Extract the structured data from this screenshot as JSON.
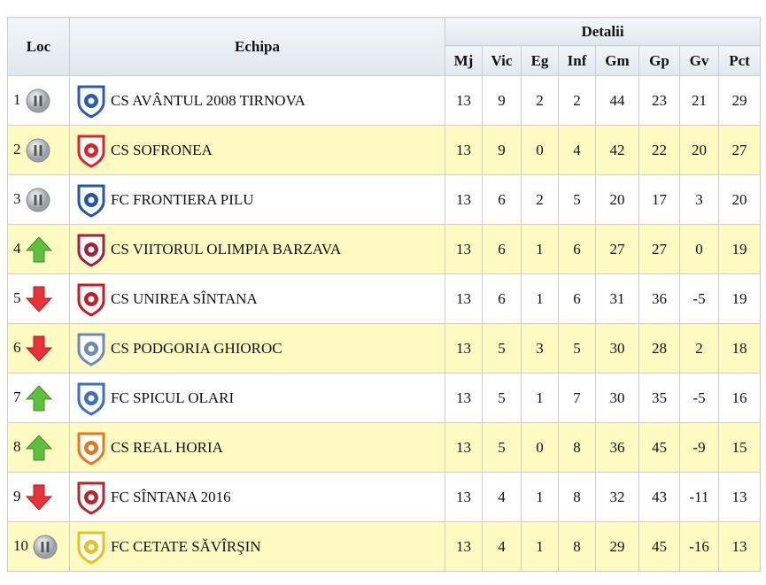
{
  "header": {
    "loc": "Loc",
    "team": "Echipa",
    "details": "Detalii",
    "columns": [
      "Mj",
      "Vic",
      "Eg",
      "Inf",
      "Gm",
      "Gp",
      "Gv",
      "Pct"
    ]
  },
  "table": {
    "rows": [
      {
        "position": 1,
        "trend": "same",
        "team": "CS AVÂNTUL 2008 TIRNOVA",
        "stats": [
          13,
          9,
          2,
          2,
          44,
          23,
          21,
          29
        ]
      },
      {
        "position": 2,
        "trend": "same",
        "team": "CS SOFRONEA",
        "stats": [
          13,
          9,
          0,
          4,
          42,
          22,
          20,
          27
        ]
      },
      {
        "position": 3,
        "trend": "same",
        "team": "FC FRONTIERA PILU",
        "stats": [
          13,
          6,
          2,
          5,
          20,
          17,
          3,
          20
        ]
      },
      {
        "position": 4,
        "trend": "up",
        "team": "CS VIITORUL OLIMPIA BARZAVA",
        "stats": [
          13,
          6,
          1,
          6,
          27,
          27,
          0,
          19
        ]
      },
      {
        "position": 5,
        "trend": "down",
        "team": "CS UNIREA SÎNTANA",
        "stats": [
          13,
          6,
          1,
          6,
          31,
          36,
          -5,
          19
        ]
      },
      {
        "position": 6,
        "trend": "down",
        "team": "CS PODGORIA GHIOROC",
        "stats": [
          13,
          5,
          3,
          5,
          30,
          28,
          2,
          18
        ]
      },
      {
        "position": 7,
        "trend": "up",
        "team": "FC SPICUL OLARI",
        "stats": [
          13,
          5,
          1,
          7,
          30,
          35,
          -5,
          16
        ]
      },
      {
        "position": 8,
        "trend": "up",
        "team": "CS REAL HORIA",
        "stats": [
          13,
          5,
          0,
          8,
          36,
          45,
          -9,
          15
        ]
      },
      {
        "position": 9,
        "trend": "down",
        "team": "FC SÎNTANA 2016",
        "stats": [
          13,
          4,
          1,
          8,
          32,
          43,
          -11,
          13
        ]
      },
      {
        "position": 10,
        "trend": "same",
        "team": "FC CETATE SĂVÎRŞIN",
        "stats": [
          13,
          4,
          1,
          8,
          29,
          45,
          -16,
          13
        ]
      }
    ]
  }
}
